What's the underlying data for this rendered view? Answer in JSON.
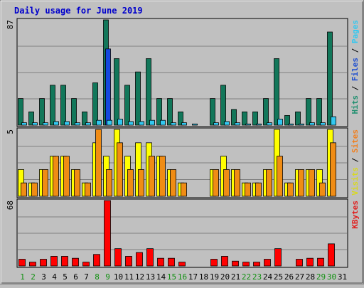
{
  "chart_data": {
    "type": "bar",
    "title": "Daily usage for June 2019",
    "categories": [
      "1",
      "2",
      "3",
      "4",
      "5",
      "6",
      "7",
      "8",
      "9",
      "10",
      "11",
      "12",
      "13",
      "14",
      "15",
      "16",
      "17",
      "18",
      "19",
      "20",
      "21",
      "22",
      "23",
      "24",
      "25",
      "26",
      "27",
      "28",
      "29",
      "30",
      "31"
    ],
    "weekend_days": [
      "1",
      "2",
      "8",
      "9",
      "15",
      "16",
      "22",
      "23",
      "29",
      "30"
    ],
    "panels": [
      {
        "id": "hits",
        "ymax_label": "87",
        "ylim": [
          0,
          87
        ],
        "right_labels": [
          {
            "text": "Hits",
            "color": "#1f8f6f"
          },
          {
            "text": "Files",
            "color": "#1f4fd0"
          },
          {
            "text": "Pages",
            "color": "#33c8f0"
          }
        ],
        "series": [
          {
            "name": "Hits",
            "color": "#12775a",
            "values": [
              22,
              11,
              22,
              33,
              33,
              22,
              11,
              35,
              87,
              55,
              33,
              44,
              55,
              22,
              22,
              11,
              0,
              0,
              22,
              33,
              13,
              11,
              11,
              22,
              55,
              8,
              11,
              22,
              22,
              77,
              0
            ]
          },
          {
            "name": "Files",
            "color": "#1448e0",
            "values": [
              0,
              0,
              0,
              0,
              0,
              0,
              0,
              0,
              63,
              0,
              0,
              0,
              0,
              0,
              0,
              0,
              0,
              0,
              0,
              0,
              0,
              0,
              0,
              0,
              0,
              0,
              0,
              0,
              0,
              0,
              0
            ]
          },
          {
            "name": "Pages",
            "color": "#33c8f0",
            "values": [
              2,
              2,
              2,
              3,
              3,
              2,
              2,
              4,
              4,
              5,
              3,
              3,
              4,
              4,
              2,
              2,
              1,
              0,
              2,
              3,
              2,
              1,
              1,
              2,
              5,
              1,
              1,
              2,
              2,
              7,
              0
            ]
          }
        ]
      },
      {
        "id": "visits",
        "ymax_label": "5",
        "ylim": [
          0,
          5
        ],
        "right_labels": [
          {
            "text": "Visits",
            "color": "#d8d820"
          },
          {
            "text": "Sites",
            "color": "#f08020"
          }
        ],
        "series": [
          {
            "name": "Visits",
            "color": "#ffff00",
            "values": [
              2,
              1,
              2,
              3,
              3,
              2,
              1,
              4,
              3,
              5,
              3,
              4,
              4,
              3,
              2,
              1,
              0,
              0,
              2,
              3,
              2,
              1,
              1,
              2,
              5,
              1,
              2,
              2,
              2,
              5,
              0
            ]
          },
          {
            "name": "Sites",
            "color": "#f08c14",
            "values": [
              1,
              1,
              2,
              3,
              3,
              2,
              1,
              5,
              2,
              4,
              2,
              2,
              3,
              3,
              2,
              1,
              0,
              0,
              2,
              2,
              2,
              1,
              1,
              2,
              3,
              1,
              2,
              2,
              1,
              4,
              0
            ]
          }
        ]
      },
      {
        "id": "kbytes",
        "ymax_label": "68",
        "ylim": [
          0,
          68
        ],
        "right_labels": [
          {
            "text": "KBytes",
            "color": "#e02020"
          }
        ],
        "series": [
          {
            "name": "KBytes",
            "color": "#ff0000",
            "values": [
              7,
              4,
              7,
              10,
              10,
              8,
              4,
              12,
              68,
              18,
              10,
              14,
              18,
              8,
              8,
              4,
              0,
              0,
              7,
              10,
              5,
              4,
              4,
              7,
              18,
              0,
              7,
              8,
              8,
              23,
              0
            ]
          }
        ]
      }
    ]
  }
}
